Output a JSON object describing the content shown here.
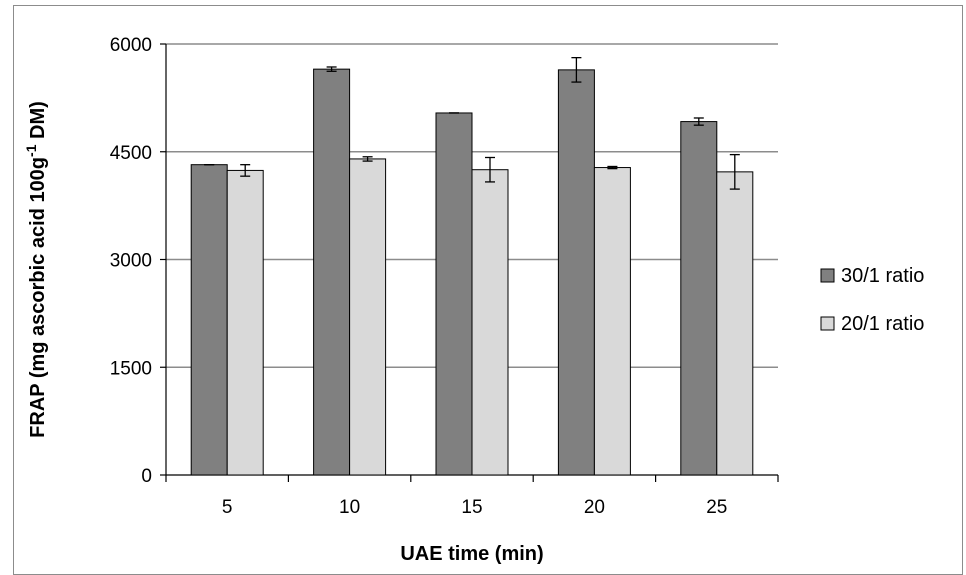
{
  "chart_data": {
    "type": "bar",
    "title": "",
    "xlabel": "UAE time (min)",
    "ylabel_main": "FRAP (mg ascorbic acid 100g",
    "ylabel_sup": "-1",
    "ylabel_tail": " DM)",
    "categories": [
      "5",
      "10",
      "15",
      "20",
      "25"
    ],
    "ylim": [
      0,
      6000
    ],
    "yticks": [
      0,
      1500,
      3000,
      4500,
      6000
    ],
    "grid": true,
    "legend_position": "right",
    "series": [
      {
        "name": "30/1 ratio",
        "color": "#808080",
        "values": [
          4320,
          5650,
          5040,
          5640,
          4920
        ],
        "errors": [
          0,
          30,
          0,
          170,
          50
        ]
      },
      {
        "name": "20/1 ratio",
        "color": "#d9d9d9",
        "values": [
          4240,
          4400,
          4250,
          4280,
          4220
        ],
        "errors": [
          80,
          30,
          170,
          15,
          240
        ]
      }
    ]
  }
}
